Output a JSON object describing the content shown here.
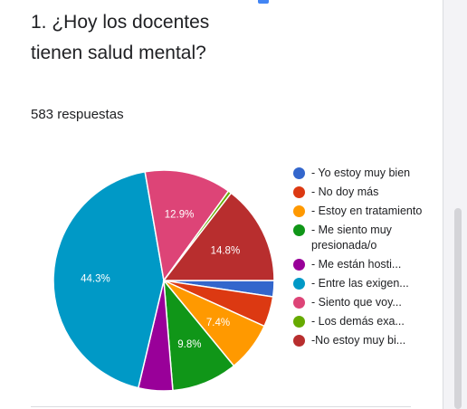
{
  "question": {
    "title": "1. ¿Hoy los docentes tienen salud mental?",
    "responses": "583 respuestas"
  },
  "chart_data": {
    "type": "pie",
    "slices": [
      {
        "label": "- Yo estoy muy bien",
        "value": 2.4,
        "color": "#3366cc",
        "data_label": ""
      },
      {
        "label": "- No doy más",
        "value": 4.5,
        "color": "#dc3912",
        "data_label": ""
      },
      {
        "label": "- Estoy en tratamiento",
        "value": 7.4,
        "color": "#ff9900",
        "data_label": "7.4%"
      },
      {
        "label": "- Me siento muy presionada/o",
        "value": 9.8,
        "color": "#109618",
        "data_label": "9.8%"
      },
      {
        "label": "- Me están hosti...",
        "value": 5.1,
        "color": "#990099",
        "data_label": ""
      },
      {
        "label": "- Entre las exigen...",
        "value": 44.3,
        "color": "#0099c6",
        "data_label": "44.3%"
      },
      {
        "label": "- Siento que voy...",
        "value": 12.9,
        "color": "#dd4477",
        "data_label": "12.9%"
      },
      {
        "label": "- Los demás exa...",
        "value": 0.5,
        "color": "#66aa00",
        "data_label": ""
      },
      {
        "label": "-No estoy muy bi...",
        "value": 14.8,
        "color": "#b82e2e",
        "data_label": "14.8%"
      }
    ]
  }
}
